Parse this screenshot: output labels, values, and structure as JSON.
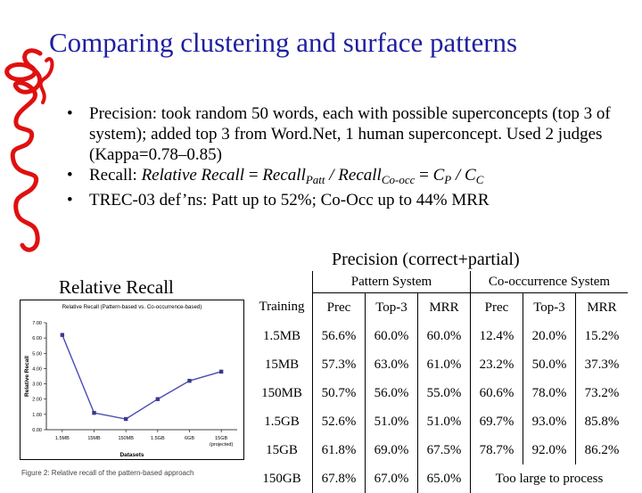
{
  "slide": {
    "title": "Comparing clustering and surface patterns"
  },
  "bullets": {
    "b1": "Precision: took random 50 words, each with possible superconcepts (top 3 of system); added top 3 from Word.Net, 1 human superconcept.  Used 2 judges (Kappa=0.78–0.85)",
    "b2_prefix": "Recall:  ",
    "b2_rel": "Relative Recall",
    "b2_eq1": "  =  ",
    "b2_recall1": "Recall",
    "b2_sub1": "Patt",
    "b2_slash": " / ",
    "b2_recall2": "Recall",
    "b2_sub2": "Co-occ",
    "b2_eq2": "  =  ",
    "b2_cp": "C",
    "b2_cp_sub": "P",
    "b2_slash2": " / ",
    "b2_cc": "C",
    "b2_cc_sub": "C",
    "b3": "TREC-03 def’ns: Patt up to 52%; Co-Occ up to 44% MRR",
    "dot": "•"
  },
  "relative_recall_label": "Relative Recall",
  "precision_caption": "Precision (correct+partial)",
  "chart_data": {
    "type": "line",
    "title": "Relative Recall (Pattern-based vs. Co-occurrence-based)",
    "xlabel": "Datasets",
    "ylabel": "Relative Recall",
    "categories": [
      "1.5MB",
      "15MB",
      "150MB",
      "1.5GB",
      "6GB",
      "15GB"
    ],
    "category_sublabel": {
      "15GB": "(projected)"
    },
    "values": [
      6.2,
      1.1,
      0.7,
      2.0,
      3.2,
      3.8
    ],
    "ylim": [
      0,
      7
    ],
    "yticks": [
      "0.00",
      "1.00",
      "2.00",
      "3.00",
      "4.00",
      "5.00",
      "6.00",
      "7.00"
    ],
    "colors": {
      "line": "#4a4ab8",
      "marker": "#3a3a8a"
    },
    "grid": false
  },
  "caption_strip": "Figure 2: Relative recall of the pattern-based approach",
  "table": {
    "group_pattern": "Pattern System",
    "group_cooc": "Co-occurrence System",
    "headers": [
      "Training",
      "Prec",
      "Top-3",
      "MRR",
      "Prec",
      "Top-3",
      "MRR"
    ],
    "rows": [
      [
        "1.5MB",
        "56.6%",
        "60.0%",
        "60.0%",
        "12.4%",
        "20.0%",
        "15.2%"
      ],
      [
        "15MB",
        "57.3%",
        "63.0%",
        "61.0%",
        "23.2%",
        "50.0%",
        "37.3%"
      ],
      [
        "150MB",
        "50.7%",
        "56.0%",
        "55.0%",
        "60.6%",
        "78.0%",
        "73.2%"
      ],
      [
        "1.5GB",
        "52.6%",
        "51.0%",
        "51.0%",
        "69.7%",
        "93.0%",
        "85.8%"
      ],
      [
        "15GB",
        "61.8%",
        "69.0%",
        "67.5%",
        "78.7%",
        "92.0%",
        "86.2%"
      ]
    ],
    "last_row": [
      "150GB",
      "67.8%",
      "67.0%",
      "65.0%"
    ],
    "last_row_cooc": "Too large to process"
  }
}
